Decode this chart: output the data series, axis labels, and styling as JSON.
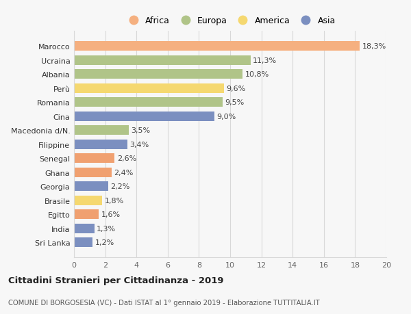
{
  "countries": [
    "Sri Lanka",
    "India",
    "Egitto",
    "Brasile",
    "Georgia",
    "Ghana",
    "Senegal",
    "Filippine",
    "Macedonia d/N.",
    "Cina",
    "Romania",
    "Perù",
    "Albania",
    "Ucraina",
    "Marocco"
  ],
  "values": [
    1.2,
    1.3,
    1.6,
    1.8,
    2.2,
    2.4,
    2.6,
    3.4,
    3.5,
    9.0,
    9.5,
    9.6,
    10.8,
    11.3,
    18.3
  ],
  "labels": [
    "1,2%",
    "1,3%",
    "1,6%",
    "1,8%",
    "2,2%",
    "2,4%",
    "2,6%",
    "3,4%",
    "3,5%",
    "9,0%",
    "9,5%",
    "9,6%",
    "10,8%",
    "11,3%",
    "18,3%"
  ],
  "colors": [
    "#7b8fc0",
    "#7b8fc0",
    "#f0a070",
    "#f5d870",
    "#7b8fc0",
    "#f0a070",
    "#f0a070",
    "#7b8fc0",
    "#b0c488",
    "#7b8fc0",
    "#b0c488",
    "#f5d870",
    "#b0c488",
    "#b0c488",
    "#f5b080"
  ],
  "legend": [
    {
      "label": "Africa",
      "color": "#f5b080"
    },
    {
      "label": "Europa",
      "color": "#b0c488"
    },
    {
      "label": "America",
      "color": "#f5d870"
    },
    {
      "label": "Asia",
      "color": "#7b8fc0"
    }
  ],
  "xlim": [
    0,
    20
  ],
  "xticks": [
    0,
    2,
    4,
    6,
    8,
    10,
    12,
    14,
    16,
    18,
    20
  ],
  "title": "Cittadini Stranieri per Cittadinanza - 2019",
  "subtitle": "COMUNE DI BORGOSESIA (VC) - Dati ISTAT al 1° gennaio 2019 - Elaborazione TUTTITALIA.IT",
  "bg_color": "#f7f7f7",
  "grid_color": "#d8d8d8"
}
